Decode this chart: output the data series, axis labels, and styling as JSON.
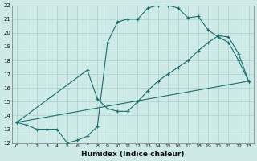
{
  "xlabel": "Humidex (Indice chaleur)",
  "xlim": [
    -0.5,
    23.5
  ],
  "ylim": [
    12,
    22
  ],
  "xticks": [
    0,
    1,
    2,
    3,
    4,
    5,
    6,
    7,
    8,
    9,
    10,
    11,
    12,
    13,
    14,
    15,
    16,
    17,
    18,
    19,
    20,
    21,
    22,
    23
  ],
  "yticks": [
    12,
    13,
    14,
    15,
    16,
    17,
    18,
    19,
    20,
    21,
    22
  ],
  "bg_color": "#ceeae7",
  "line_color": "#1a6e6e",
  "grid_color": "#aed4d0",
  "line1_x": [
    0,
    1,
    2,
    3,
    4,
    5,
    6,
    7,
    8,
    9,
    10,
    11,
    12,
    13,
    14,
    15,
    16,
    17,
    18,
    19,
    20,
    21,
    22,
    23
  ],
  "line1_y": [
    13.5,
    13.3,
    13.0,
    13.0,
    13.0,
    12.0,
    12.2,
    12.5,
    13.2,
    19.3,
    20.8,
    21.0,
    21.0,
    21.8,
    22.0,
    22.0,
    21.8,
    21.1,
    21.2,
    20.2,
    19.7,
    19.3,
    18.0,
    16.5
  ],
  "line2_x": [
    0,
    7,
    8,
    9,
    10,
    11,
    12,
    13,
    14,
    15,
    16,
    17,
    18,
    19,
    20,
    21,
    22,
    23
  ],
  "line2_y": [
    13.5,
    17.3,
    15.2,
    14.5,
    14.3,
    14.3,
    15.0,
    15.8,
    16.5,
    17.0,
    17.5,
    18.0,
    18.7,
    19.3,
    19.8,
    19.7,
    18.5,
    16.5
  ],
  "line3_x": [
    0,
    23
  ],
  "line3_y": [
    13.5,
    16.5
  ]
}
